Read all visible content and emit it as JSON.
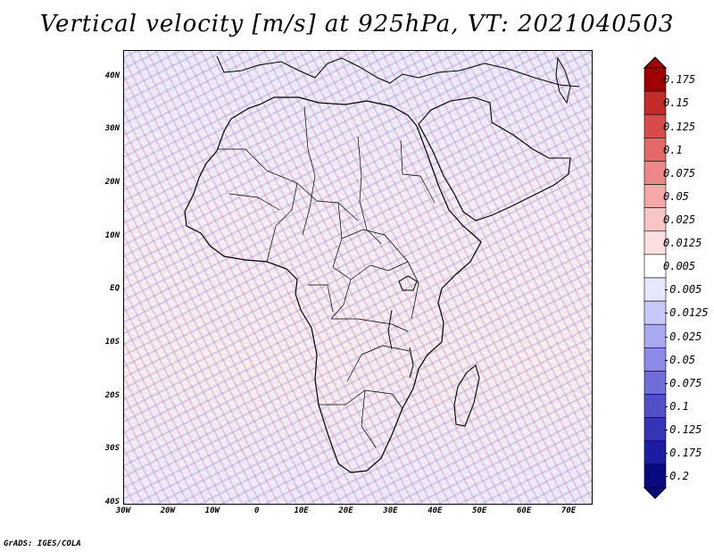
{
  "title": "Vertical velocity [m/s] at 925hPa, VT: 2021040503",
  "footer": "GrADS: IGES/COLA",
  "map": {
    "lon_range": [
      -30,
      75
    ],
    "lat_range": [
      -40,
      45
    ],
    "lon_ticks": [
      {
        "value": -30,
        "label": "30W"
      },
      {
        "value": -20,
        "label": "20W"
      },
      {
        "value": -10,
        "label": "10W"
      },
      {
        "value": 0,
        "label": "0"
      },
      {
        "value": 10,
        "label": "10E"
      },
      {
        "value": 20,
        "label": "20E"
      },
      {
        "value": 30,
        "label": "30E"
      },
      {
        "value": 40,
        "label": "40E"
      },
      {
        "value": 50,
        "label": "50E"
      },
      {
        "value": 60,
        "label": "60E"
      },
      {
        "value": 70,
        "label": "70E"
      }
    ],
    "lat_ticks": [
      {
        "value": 40,
        "label": "40N"
      },
      {
        "value": 30,
        "label": "30N"
      },
      {
        "value": 20,
        "label": "20N"
      },
      {
        "value": 10,
        "label": "10N"
      },
      {
        "value": 0,
        "label": "EQ"
      },
      {
        "value": -10,
        "label": "10S"
      },
      {
        "value": -20,
        "label": "20S"
      },
      {
        "value": -30,
        "label": "30S"
      },
      {
        "value": -40,
        "label": "40S"
      }
    ]
  },
  "colorbar": {
    "labels": [
      "0.175",
      "0.15",
      "0.125",
      "0.1",
      "0.075",
      "0.05",
      "0.025",
      "0.0125",
      "0.005",
      "-0.005",
      "-0.0125",
      "-0.025",
      "-0.05",
      "-0.075",
      "-0.1",
      "-0.125",
      "-0.175",
      "-0.2"
    ],
    "colors": [
      "#a00000",
      "#c42c2c",
      "#d94a4a",
      "#e56868",
      "#ee8888",
      "#f5a8a8",
      "#f9c6c6",
      "#fce0e0",
      "#ffffff",
      "#e6e6ff",
      "#c8c8fa",
      "#aaaaf2",
      "#8c8ce8",
      "#6e6ed8",
      "#5050c8",
      "#3434b4",
      "#1c1ca0",
      "#0a0a80"
    ]
  }
}
